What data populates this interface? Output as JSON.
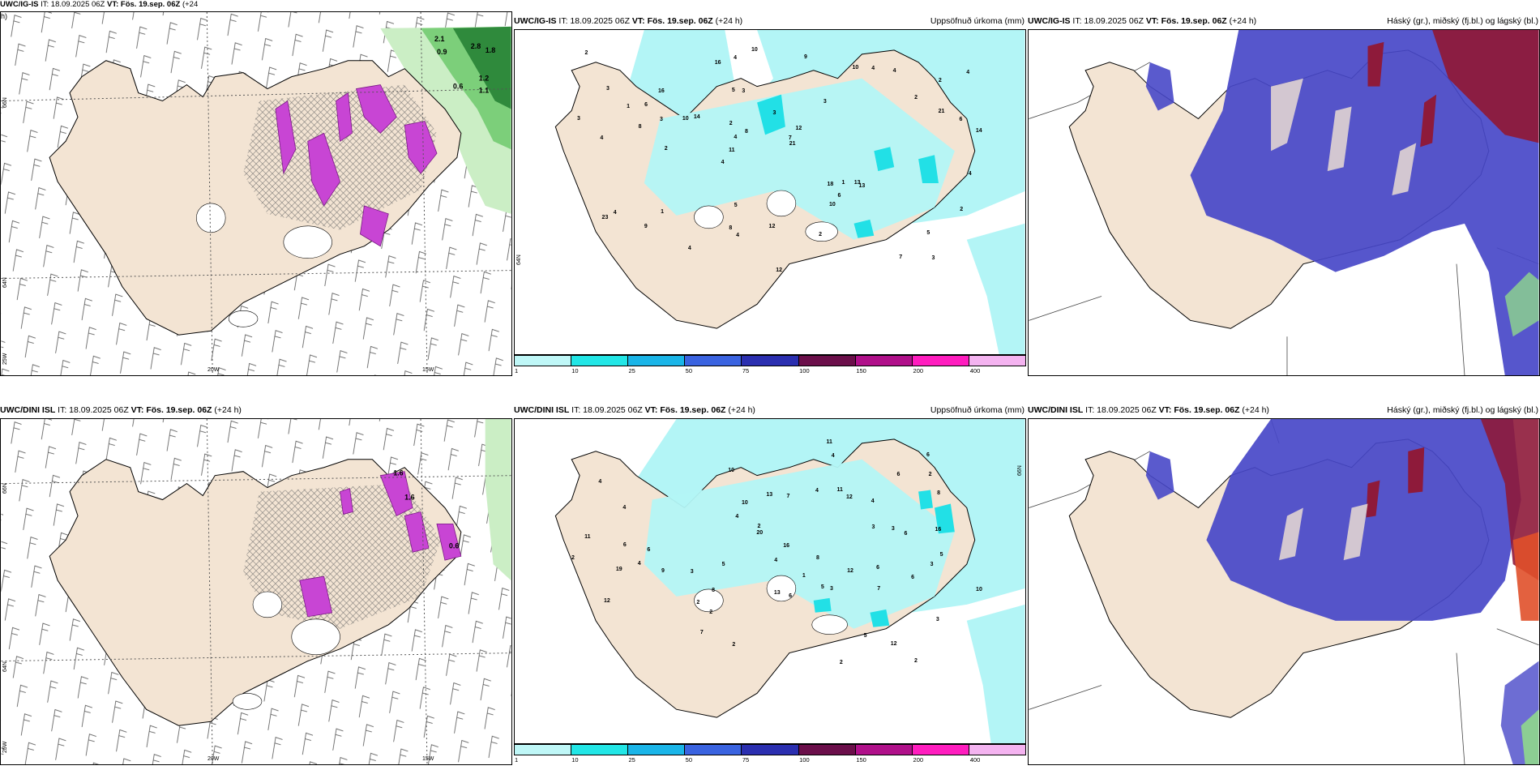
{
  "rows": [
    {
      "source": "UWC/IG-IS",
      "panels": [
        {
          "id": "top-left",
          "src_label": "UWC/IG-IS",
          "it_label": " IT: 18.09.2025 06Z ",
          "vt_label": "VT: Fös. 19.sep. 06Z",
          "lead_label": " (+24",
          "lead_label2": "h)",
          "right_label": "",
          "lat_labels": [
            "66N",
            "64N"
          ],
          "lon_labels": [
            "25W",
            "20W",
            "15W"
          ],
          "value_labels": [
            "2.1",
            "2.8",
            "0.9",
            "0.6",
            "1.2",
            "1.1",
            "1.8"
          ]
        },
        {
          "id": "top-middle",
          "src_label": "UWC/IG-IS",
          "it_label": " IT: 18.09.2025 06Z ",
          "vt_label": "VT: Fös. 19.sep. 06Z",
          "lead_label": " (+24 h)",
          "right_label": "Uppsöfnuð úrkoma (mm)",
          "lat_labels": [
            "64N"
          ],
          "numbers": [
            "3",
            "4",
            "2",
            "4",
            "3",
            "5",
            "3",
            "4",
            "14",
            "3",
            "12",
            "13",
            "3",
            "4",
            "14",
            "18",
            "21",
            "11",
            "8",
            "4",
            "16",
            "10",
            "1",
            "7",
            "5",
            "13",
            "12",
            "10",
            "8",
            "10",
            "6",
            "7",
            "4",
            "21",
            "23",
            "2",
            "4",
            "6",
            "2",
            "9",
            "12",
            "4",
            "10",
            "2",
            "3",
            "6",
            "4",
            "9",
            "16",
            "8",
            "2",
            "5",
            "4",
            "1",
            "3",
            "2",
            "1",
            "4",
            "2"
          ]
        },
        {
          "id": "top-right",
          "src_label": "UWC/IG-IS",
          "it_label": " IT: 18.09.2025 06Z ",
          "vt_label": "VT: Fös. 19.sep. 06Z",
          "lead_label": " (+24 h)",
          "right_label": "Háský (gr.), miðský (fj.bl.) og lágský (bl.)"
        }
      ]
    },
    {
      "source": "UWC/DINI ISL",
      "panels": [
        {
          "id": "bottom-left",
          "src_label": "UWC/DINI ISL",
          "it_label": " IT: 18.09.2025 06Z ",
          "vt_label": "VT: Fös. 19.sep. 06Z",
          "lead_label": " (+24 h)",
          "right_label": "",
          "lat_labels": [
            "66N",
            "64N"
          ],
          "lon_labels": [
            "25W",
            "20W",
            "15W"
          ],
          "value_labels": [
            "1.6",
            "1.6",
            "0.6"
          ]
        },
        {
          "id": "bottom-middle",
          "src_label": "UWC/DINI ISL",
          "it_label": " IT: 18.09.2025 06Z ",
          "vt_label": "VT: Fös. 19.sep. 06Z",
          "lead_label": " (+24 h)",
          "right_label": "Uppsöfnuð úrkoma (mm)",
          "lat_labels": [
            "66N"
          ],
          "numbers": [
            "2",
            "4",
            "5",
            "4",
            "3",
            "4",
            "3",
            "4",
            "13",
            "12",
            "12",
            "2",
            "10",
            "8",
            "12",
            "6",
            "16",
            "11",
            "6",
            "7",
            "3",
            "10",
            "5",
            "6",
            "9",
            "4",
            "20",
            "2",
            "3",
            "19",
            "2",
            "11",
            "10",
            "6",
            "3",
            "5",
            "6",
            "2",
            "8",
            "6",
            "7",
            "11",
            "5",
            "6",
            "8",
            "4",
            "4",
            "13",
            "12",
            "16",
            "7",
            "6",
            "4",
            "2",
            "2",
            "2",
            "1",
            "3"
          ]
        },
        {
          "id": "bottom-right",
          "src_label": "UWC/DINI ISL",
          "it_label": " IT: 18.09.2025 06Z ",
          "vt_label": "VT: Fös. 19.sep. 06Z",
          "lead_label": " (+24 h)",
          "right_label": "Háský (gr.), miðský (fj.bl.) og lágský (bl.)"
        }
      ]
    }
  ],
  "colorbar": {
    "ticks": [
      "1",
      "10",
      "25",
      "50",
      "75",
      "100",
      "150",
      "200",
      "400"
    ],
    "colors": [
      "#bff7f7",
      "#22e6e6",
      "#1ab5e8",
      "#3a63e0",
      "#2b2fb0",
      "#6b0f4a",
      "#b0108a",
      "#ff1dbf",
      "#f4b3f0"
    ]
  },
  "colors": {
    "land": "#f3e4d3",
    "cyan_light": "#b3f5f6",
    "cyan_mid": "#22e0e6",
    "magenta": "#c845d4",
    "green_light": "#bfe9b8",
    "green_dark": "#2b7a35",
    "cloud_blue": "#4848c8",
    "cloud_red": "#8e1a3a",
    "cloud_light": "#8aa0f0"
  }
}
